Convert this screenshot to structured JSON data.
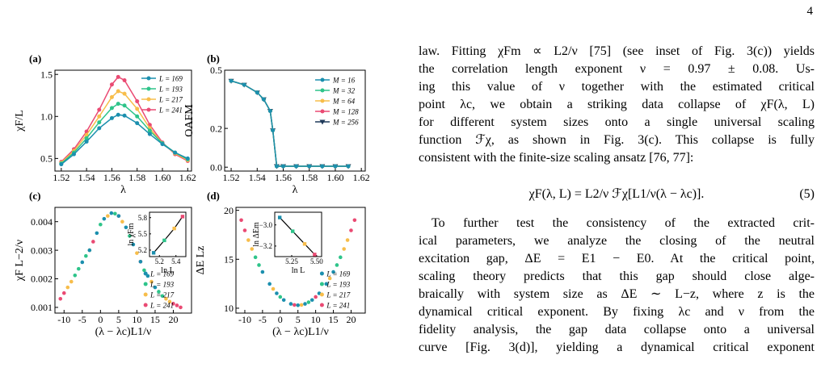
{
  "page_number": "4",
  "figure": {
    "panels": [
      {
        "label": "(a)",
        "type": "line",
        "xlabel": "λ",
        "ylabel": "χF/L",
        "xlim": [
          1.515,
          1.623
        ],
        "ylim": [
          0.35,
          1.55
        ],
        "xticks": [
          1.52,
          1.54,
          1.56,
          1.58,
          {
            "value": 1.6,
            "label": "1.60"
          },
          1.62
        ],
        "yticks": [
          0.5,
          {
            "value": 1,
            "label": "1.0"
          },
          1.5
        ],
        "legend": "upper right",
        "x": [
          1.52,
          1.53,
          1.54,
          1.55,
          1.56,
          1.565,
          1.57,
          1.58,
          1.59,
          1.6,
          1.61,
          1.62
        ],
        "series": [
          {
            "name": "L = 169",
            "color": "#1b8fae",
            "values": [
              0.43,
              0.55,
              0.7,
              0.86,
              0.98,
              1.02,
              1.01,
              0.92,
              0.79,
              0.67,
              0.57,
              0.5
            ]
          },
          {
            "name": "L = 193",
            "color": "#2ec48a",
            "values": [
              0.44,
              0.57,
              0.74,
              0.93,
              1.1,
              1.15,
              1.13,
              1.0,
              0.83,
              0.68,
              0.57,
              0.49
            ]
          },
          {
            "name": "L = 217",
            "color": "#f7bd4a",
            "values": [
              0.45,
              0.59,
              0.78,
              1.0,
              1.23,
              1.3,
              1.27,
              1.09,
              0.86,
              0.68,
              0.56,
              0.48
            ]
          },
          {
            "name": "L = 241",
            "color": "#ea4a73",
            "values": [
              0.46,
              0.61,
              0.82,
              1.08,
              1.38,
              1.47,
              1.43,
              1.18,
              0.9,
              0.69,
              0.55,
              0.47
            ]
          }
        ]
      },
      {
        "label": "(b)",
        "type": "line",
        "xlabel": "λ",
        "ylabel": "OAFM",
        "xlim": [
          1.515,
          1.623
        ],
        "ylim": [
          -0.02,
          0.5
        ],
        "xticks": [
          1.52,
          1.54,
          1.56,
          1.58,
          {
            "value": 1.6,
            "label": "1.60"
          },
          1.62
        ],
        "yticks": [
          {
            "value": 0,
            "label": "0.0"
          },
          0.2,
          0.5
        ],
        "legend": "upper right",
        "x": [
          1.52,
          1.53,
          1.54,
          1.545,
          1.55,
          1.552,
          1.555,
          1.56,
          1.57,
          1.58,
          1.59,
          1.6,
          1.61
        ],
        "series": [
          {
            "name": "M = 16",
            "color": "#1b8fae",
            "values": [
              0.445,
              0.425,
              0.385,
              0.35,
              0.29,
              0.19,
              0.005,
              0.005,
              0.005,
              0.005,
              0.005,
              0.005,
              0.005
            ]
          },
          {
            "name": "M = 32",
            "color": "#2ec48a",
            "values": [
              0.445,
              0.425,
              0.385,
              0.35,
              0.29,
              0.19,
              0.005,
              0.005,
              0.005,
              0.005,
              0.005,
              0.005,
              0.005
            ]
          },
          {
            "name": "M = 64",
            "color": "#f7bd4a",
            "values": [
              0.445,
              0.425,
              0.385,
              0.35,
              0.29,
              0.19,
              0.005,
              0.005,
              0.005,
              0.005,
              0.005,
              0.005,
              0.005
            ]
          },
          {
            "name": "M = 128",
            "color": "#ea4a73",
            "values": [
              0.445,
              0.425,
              0.385,
              0.35,
              0.29,
              0.19,
              0.005,
              0.005,
              0.005,
              0.005,
              0.005,
              0.005,
              0.005
            ]
          },
          {
            "name": "M = 256",
            "color": "#1f3a5a",
            "marker": "triangle",
            "values": [
              0.445,
              0.425,
              0.385,
              0.35,
              0.29,
              0.19,
              0.005,
              0.005,
              0.005,
              0.005,
              0.005,
              0.005,
              0.005
            ]
          }
        ]
      },
      {
        "label": "(c)",
        "type": "scatter",
        "xlabel": "(λ − λc)L1/ν",
        "ylabel": "χF L−2/ν",
        "xlim": [
          -12.5,
          25
        ],
        "ylim": [
          0.0008,
          0.0045
        ],
        "xticks": [
          -10,
          -5,
          0,
          5,
          10,
          15,
          20
        ],
        "yticks": [
          0.001,
          0.002,
          0.003,
          0.004
        ],
        "legend": "lower right",
        "series": [
          {
            "name": "L = 169",
            "color": "#1b8fae",
            "x": [
              -5,
              -3,
              -1,
              1,
              3,
              5,
              7,
              9,
              11,
              13,
              15
            ],
            "values": [
              0.00258,
              0.003,
              0.0036,
              0.0041,
              0.0043,
              0.0042,
              0.0038,
              0.0032,
              0.0026,
              0.0021,
              0.0017
            ]
          },
          {
            "name": "L = 193",
            "color": "#2ec48a",
            "x": [
              -7,
              -6,
              -4,
              0,
              4,
              8,
              12,
              16,
              17
            ],
            "values": [
              0.00212,
              0.00235,
              0.0028,
              0.0039,
              0.00428,
              0.0035,
              0.0023,
              0.00155,
              0.0014
            ]
          },
          {
            "name": "L = 217",
            "color": "#f7bd4a",
            "x": [
              -9,
              -8,
              -3,
              2,
              6,
              10,
              14,
              18,
              19
            ],
            "values": [
              0.0017,
              0.0019,
              0.003,
              0.0042,
              0.004,
              0.0029,
              0.0019,
              0.0013,
              0.0012
            ]
          },
          {
            "name": "L = 241",
            "color": "#ea4a73",
            "x": [
              -11,
              -10,
              -2,
              5,
              11,
              20,
              21,
              22
            ],
            "values": [
              0.0013,
              0.0015,
              0.0033,
              0.0042,
              0.0026,
              0.00113,
              0.00107,
              0.001
            ]
          }
        ],
        "inset": {
          "xlabel": "ln L",
          "ylabel": "ln χFm",
          "xlim": [
            5.08,
            5.52
          ],
          "ylim": [
            5.08,
            5.9
          ],
          "xticks": [
            5.2,
            5.4
          ],
          "yticks": [
            5.2,
            5.5,
            5.8
          ],
          "x": [
            5.13,
            5.26,
            5.38,
            5.48
          ],
          "values": [
            5.15,
            5.38,
            5.6,
            5.82
          ],
          "colors": [
            "#1b8fae",
            "#2ec48a",
            "#f7bd4a",
            "#ea4a73"
          ]
        }
      },
      {
        "label": "(d)",
        "type": "scatter",
        "xlabel": "(λ − λc)L1/ν",
        "ylabel": "ΔE Lz",
        "xlim": [
          -12.5,
          24
        ],
        "ylim": [
          9.5,
          20.3
        ],
        "xticks": [
          -10,
          -5,
          0,
          5,
          10,
          15,
          20
        ],
        "yticks": [
          10,
          15,
          20
        ],
        "legend": "lower right",
        "series": [
          {
            "name": "L = 169",
            "color": "#1b8fae",
            "x": [
              -5,
              -3,
              -1,
              1,
              3,
              5,
              7,
              9,
              11,
              13,
              15
            ],
            "values": [
              13.7,
              12.48,
              11.52,
              10.84,
              10.44,
              10.3,
              10.44,
              10.84,
              11.52,
              12.48,
              13.7
            ]
          },
          {
            "name": "L = 193",
            "color": "#2ec48a",
            "x": [
              -7,
              -6,
              0,
              8,
              16,
              17
            ],
            "values": [
              15.2,
              14.41,
              11.15,
              10.61,
              14.41,
              15.2
            ]
          },
          {
            "name": "L = 217",
            "color": "#f7bd4a",
            "x": [
              -9,
              -8,
              -2,
              6,
              14,
              18,
              19
            ],
            "values": [
              16.96,
              16.05,
              11.97,
              10.33,
              13.05,
              16.05,
              16.96
            ]
          },
          {
            "name": "L = 241",
            "color": "#ea4a73",
            "x": [
              -11,
              -10,
              4,
              10,
              20,
              21
            ],
            "values": [
              19.0,
              17.95,
              10.33,
              11.15,
              17.95,
              19.0
            ]
          }
        ],
        "inset": {
          "xlabel": "ln L",
          "ylabel": "ln ΔEm",
          "xlim": [
            5.08,
            5.55
          ],
          "ylim": [
            -3.3,
            -2.88
          ],
          "xticks": [
            5.25,
            {
              "value": 5.5,
              "label": "5.50"
            }
          ],
          "yticks": [
            {
              "value": -3.0,
              "label": "−3.0"
            },
            {
              "value": -3.2,
              "label": "−3.2"
            }
          ],
          "x": [
            5.13,
            5.26,
            5.38,
            5.48
          ],
          "values": [
            -2.93,
            -3.06,
            -3.18,
            -3.28
          ],
          "colors": [
            "#1b8fae",
            "#2ec48a",
            "#f7bd4a",
            "#ea4a73"
          ]
        }
      }
    ]
  },
  "text": {
    "paragraph1": [
      "law. Fitting χFm ∝ L2/ν [75] (see inset of Fig. 3(c)) yields",
      "the correlation length exponent ν = 0.97 ± 0.08. Us-",
      "ing this value of ν together with the estimated critical",
      "point λc, we obtain a striking data collapse of χF(λ, L)",
      "for different system sizes onto a single universal scaling",
      "function ℱχ, as shown in Fig. 3(c). This collapse is fully",
      "consistent with the finite-size scaling ansatz [76, 77]:"
    ],
    "equation": "χF(λ, L) = L2/ν ℱχ[L1/ν(λ − λc)].",
    "equation_number": "(5)",
    "paragraph2": [
      "To further test the consistency of the extracted crit-",
      "ical parameters, we analyze the closing of the neutral",
      "excitation gap, ΔE = E1 − E0. At the critical point,",
      "scaling theory predicts that this gap should close alge-",
      "braically with system size as ΔE ∼ L−z, where z is the",
      "dynamical critical exponent. By fixing λc and ν from the",
      "fidelity analysis, the gap data collapse onto a universal",
      "curve [Fig. 3(d)], yielding a dynamical critical exponent"
    ]
  }
}
